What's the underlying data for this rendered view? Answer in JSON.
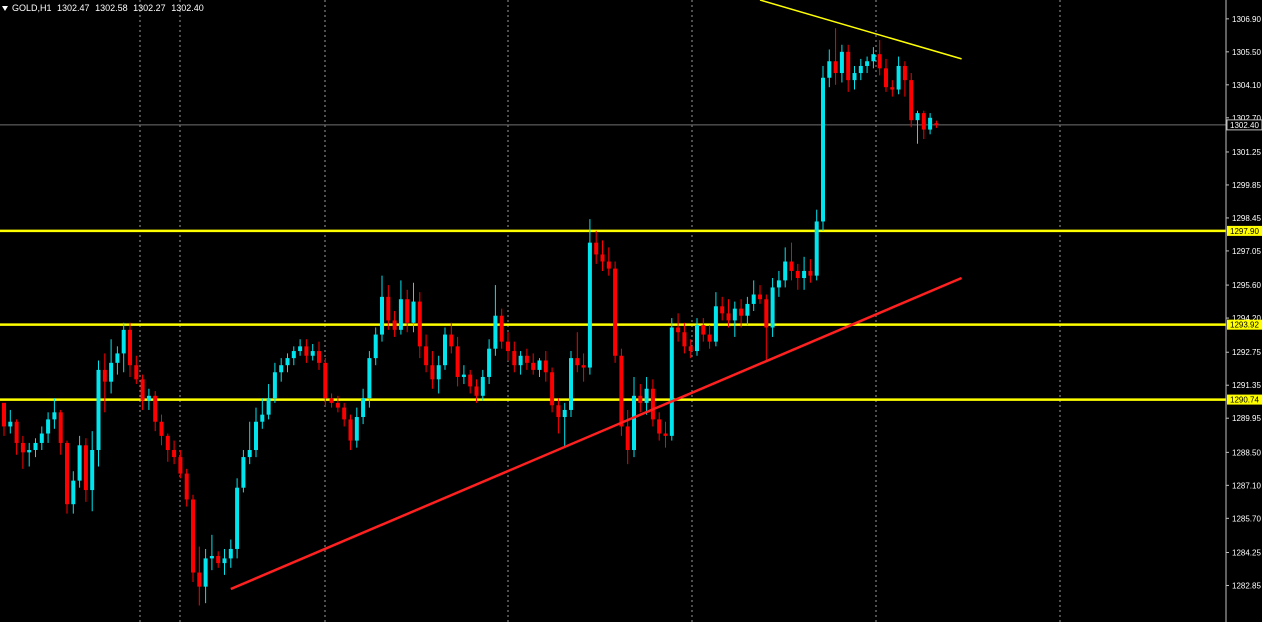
{
  "header": {
    "symbol": "GOLD,H1",
    "ohlc": [
      "1302.47",
      "1302.58",
      "1302.27",
      "1302.40"
    ]
  },
  "colors": {
    "background": "#000000",
    "bull": "#00E5EE",
    "bear": "#FF0000",
    "level": "#FFFF00",
    "trend": "#FF2020",
    "grid": "#9a9a9a",
    "axis_text": "#FFFFFF"
  },
  "chart_data": {
    "type": "candlestick",
    "y_axis": {
      "ticks": [
        "1306.90",
        "1305.50",
        "1304.10",
        "1302.70",
        "1301.25",
        "1299.85",
        "1298.45",
        "1297.05",
        "1295.60",
        "1294.20",
        "1292.75",
        "1291.35",
        "1289.95",
        "1288.50",
        "1287.10",
        "1285.70",
        "1284.25",
        "1282.85"
      ],
      "ylim": [
        1281.3,
        1307.7
      ]
    },
    "current_price": "1302.40",
    "levels": [
      {
        "price": 1297.9,
        "label": "1297.90"
      },
      {
        "price": 1293.92,
        "label": "1293.92"
      },
      {
        "price": 1290.74,
        "label": "1290.74"
      }
    ],
    "trendlines": [
      {
        "color": "red",
        "from": [
          36,
          1282.7
        ],
        "to": [
          152,
          1295.9
        ]
      },
      {
        "color": "yellow",
        "from": [
          120,
          1307.7
        ],
        "to": [
          152,
          1305.2
        ]
      }
    ],
    "n_slots": 153,
    "candles": [
      [
        1290.6,
        1290.6,
        1289.2,
        1289.6
      ],
      [
        1289.6,
        1290.3,
        1289.3,
        1289.8
      ],
      [
        1289.8,
        1289.9,
        1288.4,
        1288.9
      ],
      [
        1288.9,
        1289.2,
        1287.8,
        1288.5
      ],
      [
        1288.5,
        1288.9,
        1287.9,
        1288.6
      ],
      [
        1288.6,
        1289.1,
        1288.3,
        1288.9
      ],
      [
        1288.9,
        1289.6,
        1288.6,
        1289.3
      ],
      [
        1289.3,
        1290.2,
        1288.9,
        1289.9
      ],
      [
        1289.9,
        1290.8,
        1289.5,
        1290.2
      ],
      [
        1290.2,
        1290.3,
        1288.4,
        1288.9
      ],
      [
        1288.9,
        1289.0,
        1285.9,
        1286.3
      ],
      [
        1286.3,
        1287.7,
        1285.9,
        1287.3
      ],
      [
        1287.3,
        1289.2,
        1287.0,
        1288.8
      ],
      [
        1288.8,
        1289.1,
        1286.4,
        1286.9
      ],
      [
        1286.9,
        1289.4,
        1286.0,
        1288.6
      ],
      [
        1288.6,
        1292.4,
        1287.9,
        1292.0
      ],
      [
        1292.0,
        1292.7,
        1290.2,
        1291.5
      ],
      [
        1291.5,
        1293.3,
        1291.0,
        1292.3
      ],
      [
        1292.3,
        1293.0,
        1291.8,
        1292.7
      ],
      [
        1292.7,
        1294.0,
        1291.9,
        1293.7
      ],
      [
        1293.7,
        1294.0,
        1291.7,
        1292.2
      ],
      [
        1292.2,
        1292.6,
        1291.4,
        1291.6
      ],
      [
        1291.6,
        1291.8,
        1290.3,
        1290.7
      ],
      [
        1290.7,
        1291.2,
        1290.3,
        1290.9
      ],
      [
        1290.9,
        1291.1,
        1289.4,
        1289.8
      ],
      [
        1289.8,
        1290.1,
        1288.8,
        1289.2
      ],
      [
        1289.2,
        1289.3,
        1288.1,
        1288.6
      ],
      [
        1288.6,
        1289.0,
        1288.0,
        1288.3
      ],
      [
        1288.3,
        1288.6,
        1287.4,
        1287.6
      ],
      [
        1287.6,
        1287.8,
        1286.2,
        1286.5
      ],
      [
        1286.5,
        1286.7,
        1283.0,
        1283.4
      ],
      [
        1283.4,
        1284.5,
        1282.0,
        1282.8
      ],
      [
        1282.8,
        1284.4,
        1282.1,
        1284.0
      ],
      [
        1284.0,
        1285.0,
        1283.5,
        1284.1
      ],
      [
        1284.1,
        1284.3,
        1283.6,
        1283.8
      ],
      [
        1283.8,
        1284.4,
        1283.3,
        1284.0
      ],
      [
        1284.0,
        1284.8,
        1283.6,
        1284.4
      ],
      [
        1284.4,
        1287.4,
        1284.0,
        1287.0
      ],
      [
        1287.0,
        1288.6,
        1286.8,
        1288.3
      ],
      [
        1288.3,
        1289.8,
        1288.0,
        1288.6
      ],
      [
        1288.6,
        1290.4,
        1288.3,
        1289.8
      ],
      [
        1289.8,
        1290.8,
        1289.5,
        1290.1
      ],
      [
        1290.1,
        1291.4,
        1289.9,
        1290.8
      ],
      [
        1290.8,
        1292.3,
        1290.6,
        1291.9
      ],
      [
        1291.9,
        1292.5,
        1291.5,
        1292.2
      ],
      [
        1292.2,
        1292.7,
        1291.9,
        1292.5
      ],
      [
        1292.5,
        1293.0,
        1292.2,
        1292.8
      ],
      [
        1292.8,
        1293.3,
        1292.6,
        1293.0
      ],
      [
        1293.0,
        1293.3,
        1292.3,
        1292.6
      ],
      [
        1292.6,
        1293.1,
        1292.4,
        1292.8
      ],
      [
        1292.8,
        1293.2,
        1292.0,
        1292.3
      ],
      [
        1292.3,
        1292.5,
        1290.5,
        1290.8
      ],
      [
        1290.8,
        1291.0,
        1290.4,
        1290.6
      ],
      [
        1290.6,
        1290.9,
        1290.2,
        1290.4
      ],
      [
        1290.4,
        1290.6,
        1289.6,
        1289.9
      ],
      [
        1289.9,
        1290.1,
        1288.6,
        1289.0
      ],
      [
        1289.0,
        1290.4,
        1288.7,
        1290.0
      ],
      [
        1290.0,
        1291.2,
        1289.7,
        1290.8
      ],
      [
        1290.8,
        1292.8,
        1290.4,
        1292.5
      ],
      [
        1292.5,
        1293.8,
        1292.2,
        1293.5
      ],
      [
        1293.5,
        1296.0,
        1293.2,
        1295.1
      ],
      [
        1295.1,
        1295.6,
        1293.7,
        1294.1
      ],
      [
        1294.1,
        1294.5,
        1293.4,
        1293.7
      ],
      [
        1293.7,
        1295.8,
        1293.5,
        1295.0
      ],
      [
        1295.0,
        1295.4,
        1293.6,
        1294.0
      ],
      [
        1294.0,
        1295.7,
        1293.6,
        1294.9
      ],
      [
        1294.9,
        1295.3,
        1292.5,
        1293.0
      ],
      [
        1293.0,
        1293.5,
        1291.9,
        1292.2
      ],
      [
        1292.2,
        1292.8,
        1291.2,
        1291.6
      ],
      [
        1291.6,
        1292.6,
        1291.0,
        1292.2
      ],
      [
        1292.2,
        1293.8,
        1292.0,
        1293.5
      ],
      [
        1293.5,
        1294.0,
        1292.7,
        1293.0
      ],
      [
        1293.0,
        1293.4,
        1291.3,
        1291.7
      ],
      [
        1291.7,
        1292.2,
        1291.4,
        1291.8
      ],
      [
        1291.8,
        1292.0,
        1291.0,
        1291.3
      ],
      [
        1291.3,
        1291.6,
        1290.6,
        1290.9
      ],
      [
        1290.9,
        1292.0,
        1290.7,
        1291.7
      ],
      [
        1291.7,
        1293.3,
        1291.4,
        1292.9
      ],
      [
        1292.9,
        1295.6,
        1292.6,
        1294.3
      ],
      [
        1294.3,
        1294.6,
        1292.9,
        1293.2
      ],
      [
        1293.2,
        1293.6,
        1292.4,
        1292.8
      ],
      [
        1292.8,
        1293.2,
        1291.9,
        1292.2
      ],
      [
        1292.2,
        1292.8,
        1291.8,
        1292.6
      ],
      [
        1292.6,
        1292.9,
        1292.0,
        1292.3
      ],
      [
        1292.3,
        1292.7,
        1291.8,
        1292.0
      ],
      [
        1292.0,
        1292.5,
        1291.7,
        1292.4
      ],
      [
        1292.4,
        1292.8,
        1291.5,
        1291.9
      ],
      [
        1291.9,
        1292.1,
        1290.2,
        1290.5
      ],
      [
        1290.5,
        1290.8,
        1289.3,
        1290.0
      ],
      [
        1290.0,
        1290.6,
        1288.7,
        1290.3
      ],
      [
        1290.3,
        1292.8,
        1290.0,
        1292.5
      ],
      [
        1292.5,
        1293.6,
        1291.9,
        1292.2
      ],
      [
        1292.2,
        1292.7,
        1291.5,
        1292.1
      ],
      [
        1292.1,
        1298.4,
        1291.8,
        1297.4
      ],
      [
        1297.4,
        1297.9,
        1296.5,
        1296.9
      ],
      [
        1296.9,
        1297.5,
        1296.2,
        1296.6
      ],
      [
        1296.6,
        1297.2,
        1296.0,
        1296.3
      ],
      [
        1296.3,
        1296.6,
        1292.3,
        1292.6
      ],
      [
        1292.6,
        1292.9,
        1289.2,
        1289.6
      ],
      [
        1289.6,
        1290.3,
        1288.0,
        1288.6
      ],
      [
        1288.6,
        1291.7,
        1288.3,
        1290.9
      ],
      [
        1290.9,
        1291.4,
        1290.2,
        1290.6
      ],
      [
        1290.6,
        1291.7,
        1290.1,
        1291.2
      ],
      [
        1291.2,
        1291.6,
        1289.6,
        1289.9
      ],
      [
        1289.9,
        1290.2,
        1289.0,
        1289.3
      ],
      [
        1289.3,
        1289.8,
        1288.7,
        1289.2
      ],
      [
        1289.2,
        1294.2,
        1289.0,
        1293.8
      ],
      [
        1293.8,
        1294.4,
        1293.2,
        1293.6
      ],
      [
        1293.6,
        1294.0,
        1292.7,
        1293.0
      ],
      [
        1293.0,
        1293.3,
        1292.5,
        1292.8
      ],
      [
        1292.8,
        1294.2,
        1292.6,
        1293.9
      ],
      [
        1293.9,
        1294.2,
        1293.2,
        1293.5
      ],
      [
        1293.5,
        1293.9,
        1292.9,
        1293.2
      ],
      [
        1293.2,
        1295.3,
        1293.0,
        1294.7
      ],
      [
        1294.7,
        1295.1,
        1294.1,
        1294.4
      ],
      [
        1294.4,
        1295.0,
        1293.8,
        1294.1
      ],
      [
        1294.1,
        1294.9,
        1293.4,
        1294.6
      ],
      [
        1294.6,
        1295.0,
        1293.8,
        1294.3
      ],
      [
        1294.3,
        1295.1,
        1293.9,
        1294.8
      ],
      [
        1294.8,
        1295.8,
        1294.5,
        1295.2
      ],
      [
        1295.2,
        1295.6,
        1294.8,
        1295.0
      ],
      [
        1295.0,
        1295.2,
        1292.4,
        1293.8
      ],
      [
        1293.8,
        1295.9,
        1293.4,
        1295.5
      ],
      [
        1295.5,
        1296.2,
        1295.1,
        1295.8
      ],
      [
        1295.8,
        1297.2,
        1295.5,
        1296.6
      ],
      [
        1296.6,
        1297.4,
        1295.8,
        1296.2
      ],
      [
        1296.2,
        1296.5,
        1295.4,
        1295.9
      ],
      [
        1295.9,
        1296.8,
        1295.4,
        1296.2
      ],
      [
        1296.2,
        1296.7,
        1295.7,
        1296.0
      ],
      [
        1296.0,
        1298.8,
        1295.8,
        1298.3
      ],
      [
        1298.3,
        1304.9,
        1297.9,
        1304.4
      ],
      [
        1304.4,
        1305.6,
        1304.0,
        1305.1
      ],
      [
        1305.1,
        1306.5,
        1304.1,
        1304.6
      ],
      [
        1304.6,
        1305.8,
        1304.2,
        1305.5
      ],
      [
        1305.5,
        1305.8,
        1303.8,
        1304.3
      ],
      [
        1304.3,
        1304.9,
        1303.9,
        1304.6
      ],
      [
        1304.6,
        1305.2,
        1304.3,
        1304.9
      ],
      [
        1304.9,
        1305.3,
        1304.6,
        1305.1
      ],
      [
        1305.1,
        1305.7,
        1304.8,
        1305.4
      ],
      [
        1305.4,
        1306.0,
        1304.5,
        1304.8
      ],
      [
        1304.8,
        1305.2,
        1303.8,
        1304.0
      ],
      [
        1304.0,
        1304.3,
        1303.6,
        1303.9
      ],
      [
        1303.9,
        1305.3,
        1303.7,
        1304.9
      ],
      [
        1304.9,
        1305.1,
        1303.6,
        1304.3
      ],
      [
        1304.3,
        1304.6,
        1302.3,
        1302.6
      ],
      [
        1302.6,
        1303.0,
        1301.6,
        1302.9
      ],
      [
        1302.9,
        1303.0,
        1301.8,
        1302.2
      ],
      [
        1302.2,
        1302.9,
        1302.0,
        1302.7
      ],
      [
        1302.47,
        1302.58,
        1302.27,
        1302.4
      ]
    ]
  }
}
